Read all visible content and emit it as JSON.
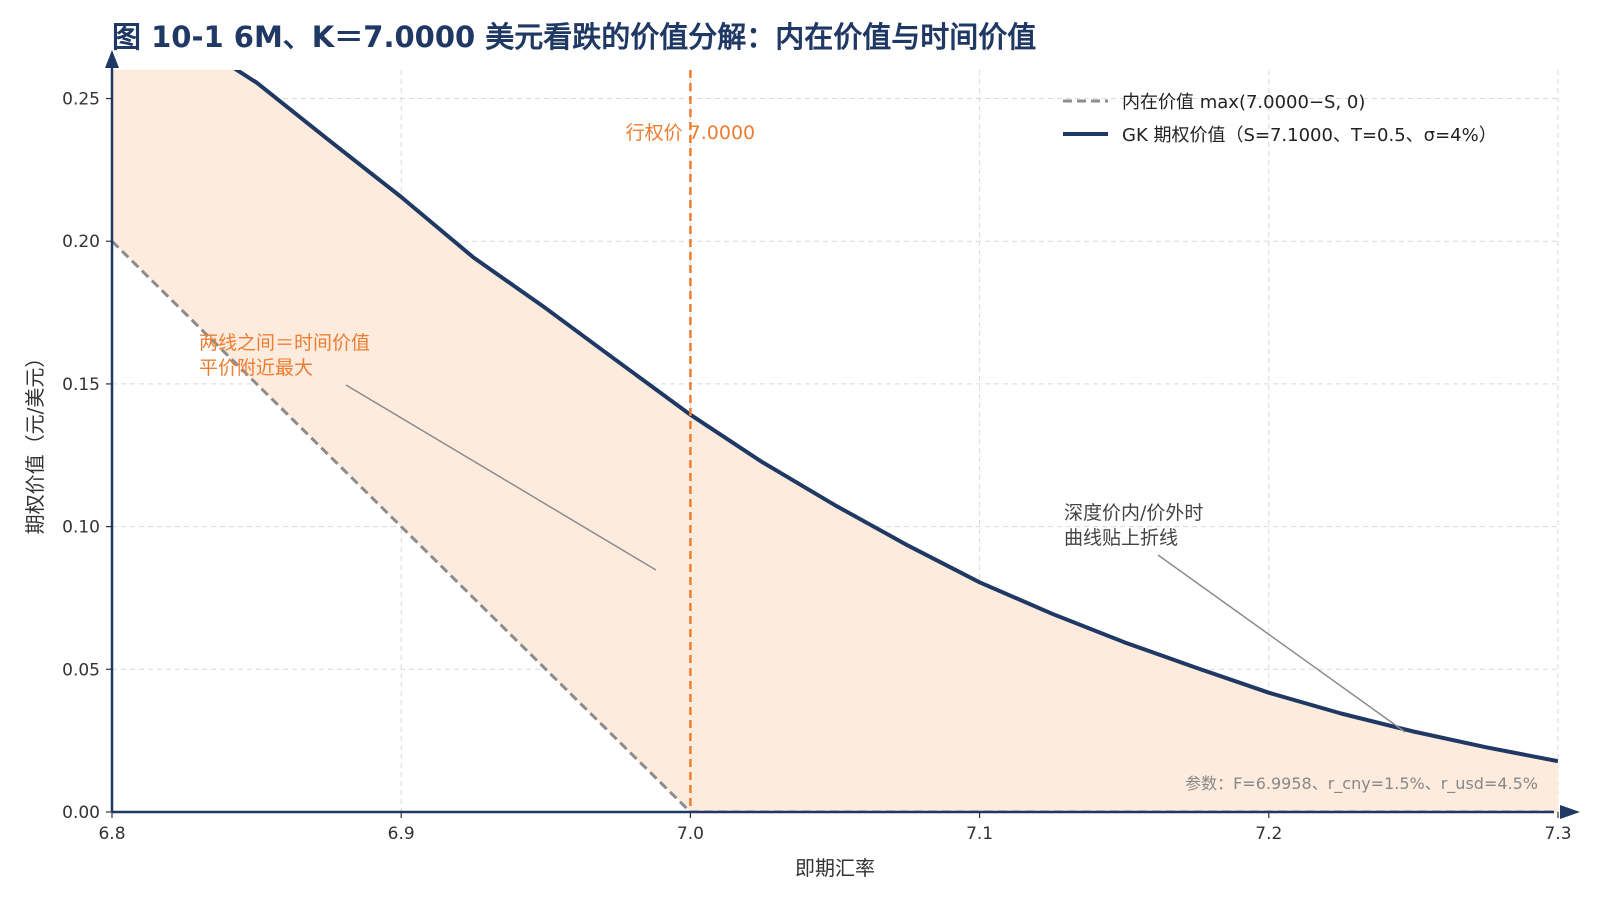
{
  "chart_data": {
    "type": "line",
    "title": "图 10-1 6M、K＝7.0000 美元看跌的价值分解：内在价值与时间价值",
    "xlabel": "即期汇率",
    "ylabel": "期权价值（元/美元）",
    "xlim": [
      6.8,
      7.3
    ],
    "ylim": [
      0.0,
      0.26
    ],
    "x_ticks": [
      "6.8",
      "6.9",
      "7.0",
      "7.1",
      "7.2",
      "7.3"
    ],
    "y_ticks": [
      "0.00",
      "0.05",
      "0.10",
      "0.15",
      "0.20",
      "0.25"
    ],
    "grid": true,
    "legend_position": "top-right",
    "series": [
      {
        "name": "内在价值 max(7.0000−S, 0)",
        "style": "dashed",
        "color": "#8c8c8c",
        "x": [
          6.8,
          7.0,
          7.3
        ],
        "y": [
          0.2,
          0.0,
          0.0
        ]
      },
      {
        "name": "GK 期权价值（S=7.1000、T=0.5、σ=4%）",
        "style": "solid",
        "color": "#1f3864",
        "x": [
          6.8,
          6.825,
          6.85,
          6.875,
          6.9,
          6.925,
          6.95,
          6.975,
          7.0,
          7.025,
          7.05,
          7.075,
          7.1,
          7.125,
          7.15,
          7.175,
          7.2,
          7.225,
          7.25,
          7.275,
          7.3
        ],
        "y": [
          0.2889,
          0.2718,
          0.2556,
          0.2354,
          0.2155,
          0.1943,
          0.1765,
          0.1578,
          0.1392,
          0.1225,
          0.1075,
          0.0935,
          0.0805,
          0.0695,
          0.0595,
          0.0505,
          0.0418,
          0.0345,
          0.0282,
          0.0227,
          0.0178
        ]
      }
    ],
    "strike": {
      "x": 7.0,
      "label": "行权价 7.0000",
      "color": "#ed7d31"
    },
    "fill_color": "#fdebdd",
    "annotations": [
      {
        "lines": [
          "两线之间＝时间价值",
          "平价附近最大"
        ],
        "color": "#ed7d31"
      },
      {
        "lines": [
          "深度价内/价外时",
          "曲线贴上折线"
        ],
        "color": "#444444"
      }
    ],
    "params_note": "参数：F=6.9958、r_cny=1.5%、r_usd=4.5%",
    "axis_color": "#1f3864"
  }
}
